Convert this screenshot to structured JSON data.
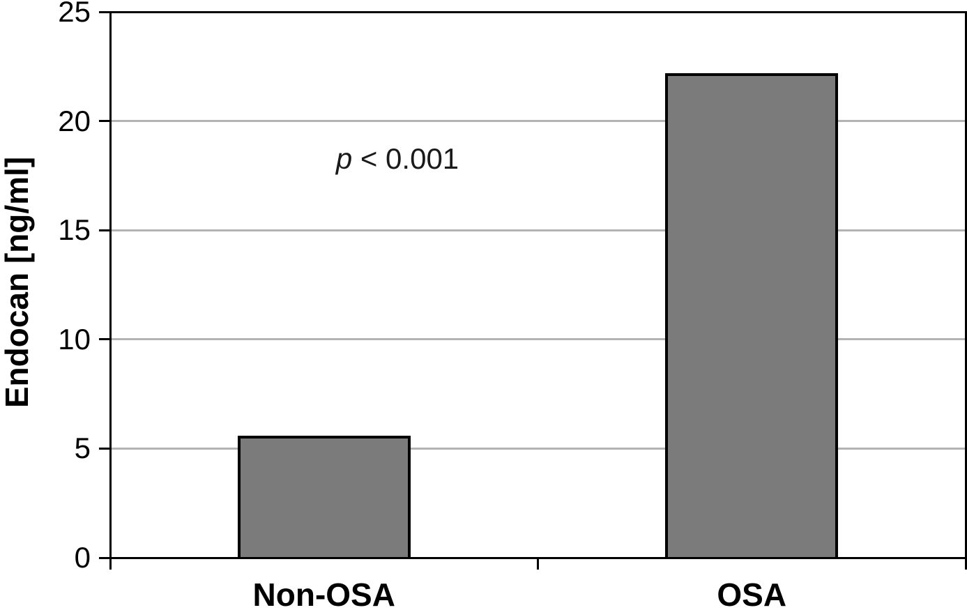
{
  "chart_data": {
    "type": "bar",
    "categories": [
      "Non-OSA",
      "OSA"
    ],
    "values": [
      5.6,
      22.2
    ],
    "title": "",
    "xlabel": "",
    "ylabel": "Endocan [ng/ml]",
    "ylim": [
      0,
      25
    ],
    "yticks": [
      0,
      5,
      10,
      15,
      20,
      25
    ],
    "gridlines": [
      5,
      10,
      15,
      20
    ],
    "grid": "horizontal",
    "legend_position": "none",
    "annotation": {
      "p_symbol": "p",
      "rest": " < 0.001"
    },
    "bar_color": "#7b7b7b",
    "bar_border_color": "#000000",
    "gridline_color": "#b3b3b3",
    "axis_color": "#000000"
  }
}
